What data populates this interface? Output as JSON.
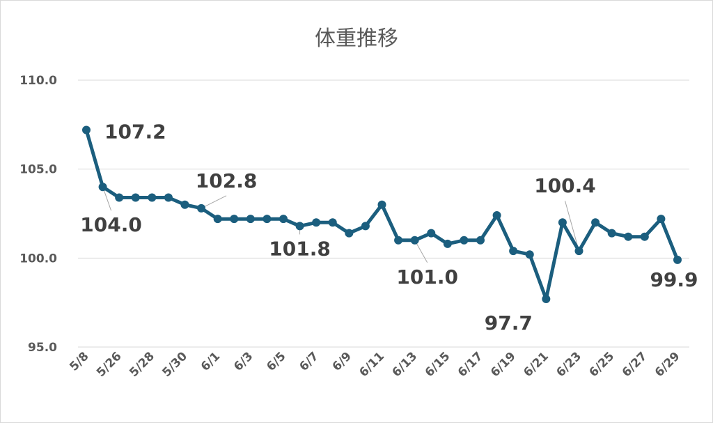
{
  "chart_data": {
    "type": "line",
    "title": "体重推移",
    "xlabel": "",
    "ylabel": "",
    "ylim": [
      95.0,
      110.0
    ],
    "yticks": [
      "95.0",
      "100.0",
      "105.0",
      "110.0"
    ],
    "x_tick_labels": [
      "5/8",
      "5/26",
      "5/28",
      "5/30",
      "6/1",
      "6/3",
      "6/5",
      "6/7",
      "6/9",
      "6/11",
      "6/13",
      "6/15",
      "6/17",
      "6/19",
      "6/21",
      "6/23",
      "6/25",
      "6/27",
      "6/29"
    ],
    "grid": "horizontal",
    "legend": "none",
    "line_color": "#1b5e7e",
    "x": [
      "5/8",
      "5/25",
      "5/26",
      "5/27",
      "5/28",
      "5/29",
      "5/30",
      "5/31",
      "6/1",
      "6/2",
      "6/3",
      "6/4",
      "6/5",
      "6/6",
      "6/7",
      "6/8",
      "6/9",
      "6/10",
      "6/11",
      "6/12",
      "6/13",
      "6/14",
      "6/15",
      "6/16",
      "6/17",
      "6/18",
      "6/19",
      "6/20",
      "6/21",
      "6/22",
      "6/23",
      "6/24",
      "6/25",
      "6/26",
      "6/27",
      "6/28",
      "6/29"
    ],
    "values": [
      107.2,
      104.0,
      103.4,
      103.4,
      103.4,
      103.4,
      103.0,
      102.8,
      102.2,
      102.2,
      102.2,
      102.2,
      102.2,
      101.8,
      102.0,
      102.0,
      101.4,
      101.8,
      103.0,
      101.0,
      101.0,
      101.4,
      100.8,
      101.0,
      101.0,
      102.4,
      100.4,
      100.2,
      97.7,
      102.0,
      100.4,
      102.0,
      101.4,
      101.2,
      101.2,
      102.2,
      99.9
    ],
    "annotations": [
      {
        "x": "5/8",
        "label": "107.2"
      },
      {
        "x": "5/25",
        "label": "104.0"
      },
      {
        "x": "5/31",
        "label": "102.8"
      },
      {
        "x": "6/6",
        "label": "101.8"
      },
      {
        "x": "6/13",
        "label": "101.0"
      },
      {
        "x": "6/21",
        "label": "97.7"
      },
      {
        "x": "6/23",
        "label": "100.4"
      },
      {
        "x": "6/29",
        "label": "99.9"
      }
    ]
  }
}
